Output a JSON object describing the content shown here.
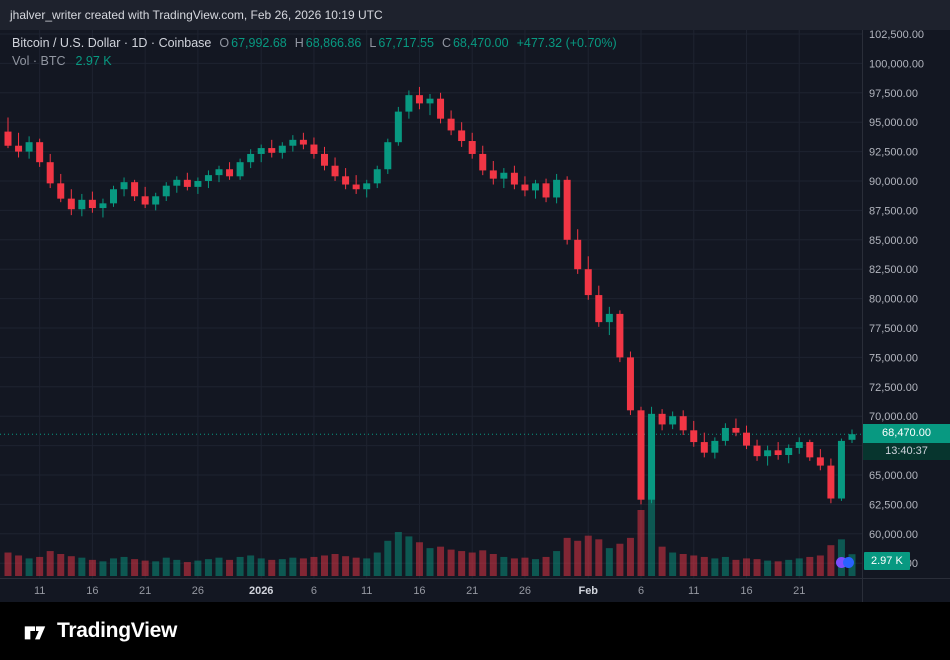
{
  "header": {
    "text": "jhalver_writer created with TradingView.com, Feb 26, 2026 10:19 UTC"
  },
  "legend": {
    "title": "Bitcoin / U.S. Dollar · 1D · Coinbase",
    "open_label": "O",
    "open": "67,992.68",
    "high_label": "H",
    "high": "68,866.86",
    "low_label": "L",
    "low": "67,717.55",
    "close_label": "C",
    "close": "68,470.00",
    "change": "+477.32 (+0.70%)",
    "volume_label": "Vol · BTC",
    "volume_value": "2.97 K"
  },
  "price_scale": {
    "current_price": "68,470.00",
    "countdown": "13:40:37",
    "volume_badge": "2.97 K"
  },
  "footer": {
    "brand": "TradingView"
  },
  "colors": {
    "up": "#089981",
    "down": "#f23645",
    "background": "#131722",
    "topbar": "#1e222d",
    "grid": "#1e2330",
    "axis_text": "#9aa0aa",
    "axis_text_bright": "#d1d4dc",
    "divider": "#2a2e39",
    "volume_up": "rgba(8,153,129,0.5)",
    "volume_down": "rgba(242,54,69,0.5)"
  },
  "chart_data": {
    "type": "candlestick",
    "title": "Bitcoin / U.S. Dollar · 1D · Coinbase",
    "symbol": "BTC/USD",
    "interval": "1D",
    "exchange": "Coinbase",
    "ohlc_current": {
      "open": 67992.68,
      "high": 68866.86,
      "low": 67717.55,
      "close": 68470.0,
      "change": 477.32,
      "change_pct": 0.7
    },
    "volume_current_btc_k": 2.97,
    "current_price_line": 68470.0,
    "price_axis": {
      "min": 57500,
      "max": 102500,
      "step": 2500
    },
    "time_axis": {
      "labels": [
        {
          "text": "11",
          "index": 3
        },
        {
          "text": "16",
          "index": 8
        },
        {
          "text": "21",
          "index": 13
        },
        {
          "text": "26",
          "index": 18
        },
        {
          "text": "2026",
          "index": 24,
          "emphasis": true
        },
        {
          "text": "6",
          "index": 29
        },
        {
          "text": "11",
          "index": 34
        },
        {
          "text": "16",
          "index": 39
        },
        {
          "text": "21",
          "index": 44
        },
        {
          "text": "26",
          "index": 49
        },
        {
          "text": "Feb",
          "index": 55,
          "emphasis": true
        },
        {
          "text": "6",
          "index": 60
        },
        {
          "text": "11",
          "index": 65
        },
        {
          "text": "16",
          "index": 70
        },
        {
          "text": "21",
          "index": 75
        }
      ]
    },
    "candles": [
      [
        "2025-12-08",
        94200,
        95400,
        92800,
        93000,
        3.2
      ],
      [
        "2025-12-09",
        93000,
        94100,
        92000,
        92500,
        2.8
      ],
      [
        "2025-12-10",
        92500,
        93800,
        91900,
        93300,
        2.4
      ],
      [
        "2025-12-11",
        93300,
        93600,
        91200,
        91600,
        2.6
      ],
      [
        "2025-12-12",
        91600,
        92300,
        89400,
        89800,
        3.4
      ],
      [
        "2025-12-13",
        89800,
        90600,
        88200,
        88500,
        3.0
      ],
      [
        "2025-12-14",
        88500,
        89300,
        87100,
        87600,
        2.7
      ],
      [
        "2025-12-15",
        87600,
        88900,
        87000,
        88400,
        2.5
      ],
      [
        "2025-12-16",
        88400,
        89100,
        87300,
        87700,
        2.2
      ],
      [
        "2025-12-17",
        87700,
        88500,
        86900,
        88100,
        2.0
      ],
      [
        "2025-12-18",
        88100,
        89600,
        87800,
        89300,
        2.4
      ],
      [
        "2025-12-19",
        89300,
        90300,
        88700,
        89900,
        2.6
      ],
      [
        "2025-12-20",
        89900,
        90100,
        88300,
        88700,
        2.3
      ],
      [
        "2025-12-21",
        88700,
        89500,
        87700,
        88000,
        2.1
      ],
      [
        "2025-12-22",
        88000,
        89000,
        87500,
        88700,
        2.0
      ],
      [
        "2025-12-23",
        88700,
        89900,
        88300,
        89600,
        2.5
      ],
      [
        "2025-12-24",
        89600,
        90400,
        89000,
        90100,
        2.2
      ],
      [
        "2025-12-25",
        90100,
        90700,
        89200,
        89500,
        1.9
      ],
      [
        "2025-12-26",
        89500,
        90300,
        88900,
        90000,
        2.1
      ],
      [
        "2025-12-27",
        90000,
        90900,
        89400,
        90500,
        2.3
      ],
      [
        "2025-12-28",
        90500,
        91300,
        89900,
        91000,
        2.5
      ],
      [
        "2025-12-29",
        91000,
        91600,
        90100,
        90400,
        2.2
      ],
      [
        "2025-12-30",
        90400,
        91900,
        90100,
        91600,
        2.6
      ],
      [
        "2025-12-31",
        91600,
        92700,
        91100,
        92300,
        2.8
      ],
      [
        "2026-01-01",
        92300,
        93100,
        91600,
        92800,
        2.4
      ],
      [
        "2026-01-02",
        92800,
        93500,
        92000,
        92400,
        2.2
      ],
      [
        "2026-01-03",
        92400,
        93300,
        91900,
        93000,
        2.3
      ],
      [
        "2026-01-04",
        93000,
        93900,
        92500,
        93500,
        2.5
      ],
      [
        "2026-01-05",
        93500,
        94100,
        92700,
        93100,
        2.4
      ],
      [
        "2026-01-06",
        93100,
        93700,
        91900,
        92300,
        2.6
      ],
      [
        "2026-01-07",
        92300,
        92900,
        90900,
        91300,
        2.8
      ],
      [
        "2026-01-08",
        91300,
        92000,
        90000,
        90400,
        3.0
      ],
      [
        "2026-01-09",
        90400,
        91100,
        89300,
        89700,
        2.7
      ],
      [
        "2026-01-10",
        89700,
        90500,
        88900,
        89300,
        2.5
      ],
      [
        "2026-01-11",
        89300,
        90100,
        88600,
        89800,
        2.4
      ],
      [
        "2026-01-12",
        89800,
        91300,
        89400,
        91000,
        3.2
      ],
      [
        "2026-01-13",
        91000,
        93600,
        90600,
        93300,
        4.8
      ],
      [
        "2026-01-14",
        93300,
        96300,
        93000,
        95900,
        6.0
      ],
      [
        "2026-01-15",
        95900,
        97700,
        95300,
        97300,
        5.4
      ],
      [
        "2026-01-16",
        97300,
        98000,
        96100,
        96600,
        4.6
      ],
      [
        "2026-01-17",
        96600,
        97400,
        95600,
        97000,
        3.8
      ],
      [
        "2026-01-18",
        97000,
        97500,
        94900,
        95300,
        4.0
      ],
      [
        "2026-01-19",
        95300,
        96000,
        93900,
        94300,
        3.6
      ],
      [
        "2026-01-20",
        94300,
        95000,
        92900,
        93400,
        3.4
      ],
      [
        "2026-01-21",
        93400,
        94100,
        91900,
        92300,
        3.2
      ],
      [
        "2026-01-22",
        92300,
        93000,
        90500,
        90900,
        3.5
      ],
      [
        "2026-01-23",
        90900,
        91700,
        89700,
        90200,
        3.0
      ],
      [
        "2026-01-24",
        90200,
        91100,
        89400,
        90700,
        2.6
      ],
      [
        "2026-01-25",
        90700,
        91300,
        89300,
        89700,
        2.4
      ],
      [
        "2026-01-26",
        89700,
        90400,
        88700,
        89200,
        2.5
      ],
      [
        "2026-01-27",
        89200,
        90100,
        88500,
        89800,
        2.3
      ],
      [
        "2026-01-28",
        89800,
        90200,
        88200,
        88600,
        2.6
      ],
      [
        "2026-01-29",
        88600,
        90600,
        88100,
        90100,
        3.4
      ],
      [
        "2026-01-30",
        90100,
        90400,
        84600,
        85000,
        5.2
      ],
      [
        "2026-01-31",
        85000,
        85900,
        82100,
        82500,
        4.8
      ],
      [
        "2026-02-01",
        82500,
        83600,
        79900,
        80300,
        5.5
      ],
      [
        "2026-02-02",
        80300,
        81100,
        77600,
        78000,
        5.0
      ],
      [
        "2026-02-03",
        78000,
        79300,
        76900,
        78700,
        3.8
      ],
      [
        "2026-02-04",
        78700,
        79000,
        74600,
        75000,
        4.4
      ],
      [
        "2026-02-05",
        75000,
        75500,
        70100,
        70500,
        5.2
      ],
      [
        "2026-02-06",
        70500,
        70800,
        62500,
        62900,
        9.0
      ],
      [
        "2026-02-07",
        62900,
        70800,
        62600,
        70200,
        12.0
      ],
      [
        "2026-02-08",
        70200,
        70600,
        68800,
        69300,
        4.0
      ],
      [
        "2026-02-09",
        69300,
        70400,
        68900,
        70000,
        3.2
      ],
      [
        "2026-02-10",
        70000,
        70500,
        68400,
        68800,
        3.0
      ],
      [
        "2026-02-11",
        68800,
        69600,
        67400,
        67800,
        2.8
      ],
      [
        "2026-02-12",
        67800,
        68600,
        66500,
        66900,
        2.6
      ],
      [
        "2026-02-13",
        66900,
        68200,
        66400,
        67900,
        2.4
      ],
      [
        "2026-02-14",
        67900,
        69400,
        67500,
        69000,
        2.6
      ],
      [
        "2026-02-15",
        69000,
        69800,
        68300,
        68600,
        2.2
      ],
      [
        "2026-02-16",
        68600,
        69200,
        67200,
        67500,
        2.4
      ],
      [
        "2026-02-17",
        67500,
        68000,
        66200,
        66600,
        2.3
      ],
      [
        "2026-02-18",
        66600,
        67500,
        65800,
        67100,
        2.1
      ],
      [
        "2026-02-19",
        67100,
        67800,
        66300,
        66700,
        2.0
      ],
      [
        "2026-02-20",
        66700,
        67600,
        66000,
        67300,
        2.2
      ],
      [
        "2026-02-21",
        67300,
        68200,
        66800,
        67800,
        2.4
      ],
      [
        "2026-02-22",
        67800,
        68000,
        66200,
        66500,
        2.6
      ],
      [
        "2026-02-23",
        66500,
        67200,
        65400,
        65800,
        2.8
      ],
      [
        "2026-02-24",
        65800,
        66400,
        62600,
        63000,
        4.2
      ],
      [
        "2026-02-25",
        63000,
        68100,
        62800,
        67900,
        5.0
      ],
      [
        "2026-02-26",
        67992.68,
        68866.86,
        67717.55,
        68470.0,
        2.97
      ]
    ]
  }
}
